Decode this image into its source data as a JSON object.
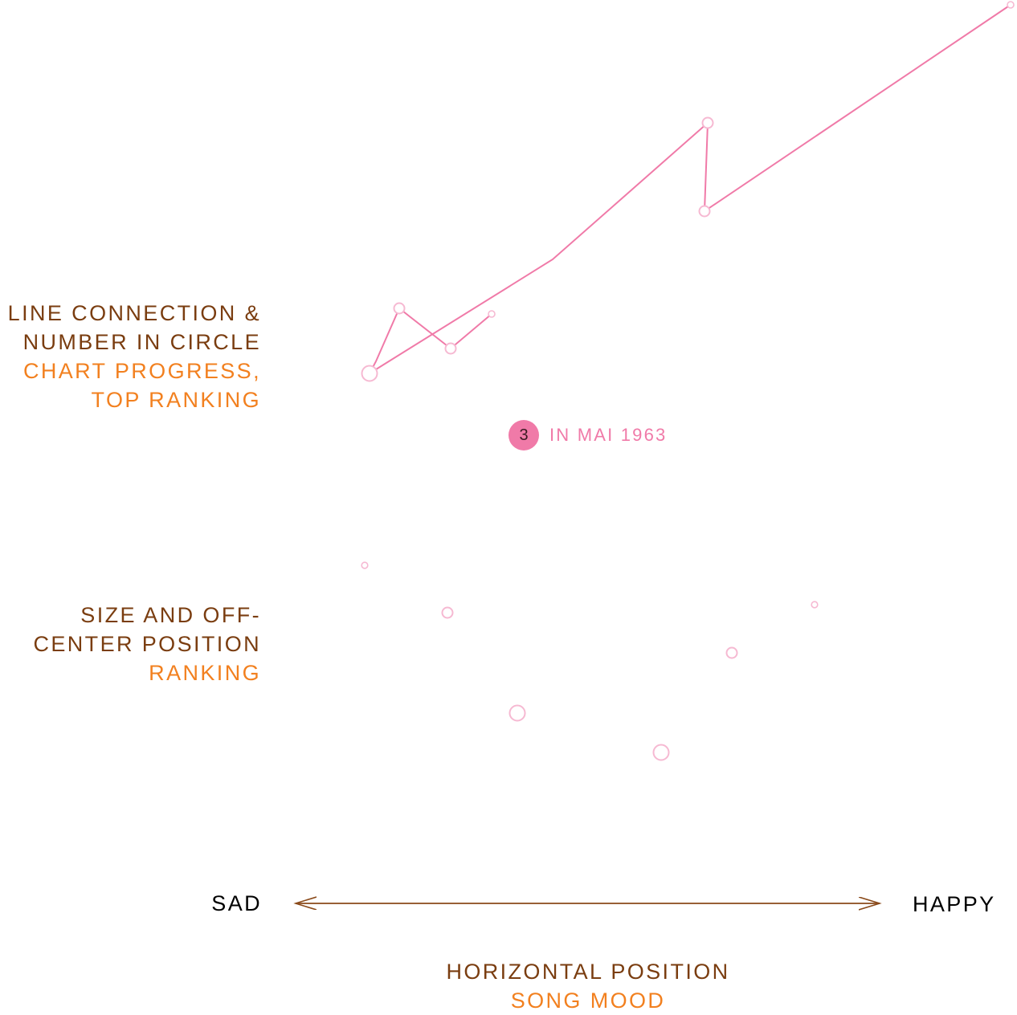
{
  "colors": {
    "primary": "#7a3d10",
    "secondary": "#f2801f",
    "accent": "#f07aa8",
    "accent_light": "#f6b9d2",
    "arrow": "#8a4a1a"
  },
  "legend": {
    "line_connection": {
      "primary_lines": [
        "LINE CONNECTION &",
        "NUMBER IN CIRCLE"
      ],
      "secondary_lines": [
        "CHART PROGRESS,",
        "TOP RANKING"
      ]
    },
    "size_position": {
      "primary_lines": [
        "SIZE AND OFF-",
        "CENTER POSITION"
      ],
      "secondary_lines": [
        "RANKING"
      ]
    },
    "horizontal_position": {
      "primary": "HORIZONTAL POSITION",
      "secondary": "SONG MOOD"
    },
    "mood_axis": {
      "left": "SAD",
      "right": "HAPPY"
    }
  },
  "annotation": {
    "rank": "3",
    "text": "IN MAI 1963"
  }
}
